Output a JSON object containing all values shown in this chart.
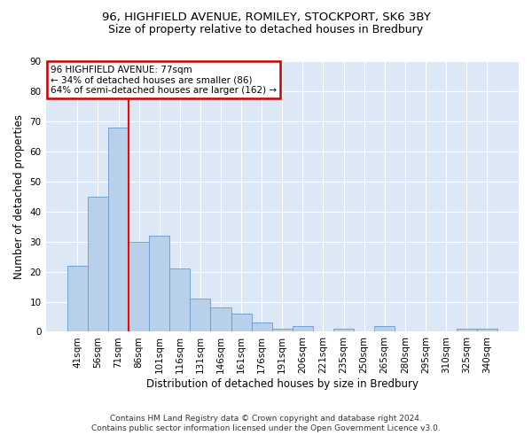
{
  "title1": "96, HIGHFIELD AVENUE, ROMILEY, STOCKPORT, SK6 3BY",
  "title2": "Size of property relative to detached houses in Bredbury",
  "xlabel": "Distribution of detached houses by size in Bredbury",
  "ylabel": "Number of detached properties",
  "footnote": "Contains HM Land Registry data © Crown copyright and database right 2024.\nContains public sector information licensed under the Open Government Licence v3.0.",
  "categories": [
    "41sqm",
    "56sqm",
    "71sqm",
    "86sqm",
    "101sqm",
    "116sqm",
    "131sqm",
    "146sqm",
    "161sqm",
    "176sqm",
    "191sqm",
    "206sqm",
    "221sqm",
    "235sqm",
    "250sqm",
    "265sqm",
    "280sqm",
    "295sqm",
    "310sqm",
    "325sqm",
    "340sqm"
  ],
  "values": [
    22,
    45,
    68,
    30,
    32,
    21,
    11,
    8,
    6,
    3,
    1,
    2,
    0,
    1,
    0,
    2,
    0,
    0,
    0,
    1,
    1
  ],
  "bar_color": "#b8d0ea",
  "bar_edge_color": "#6699cc",
  "red_line_index": 2,
  "annotation_text": "96 HIGHFIELD AVENUE: 77sqm\n← 34% of detached houses are smaller (86)\n64% of semi-detached houses are larger (162) →",
  "annotation_box_color": "#ffffff",
  "annotation_box_edge_color": "#cc0000",
  "ylim": [
    0,
    90
  ],
  "yticks": [
    0,
    10,
    20,
    30,
    40,
    50,
    60,
    70,
    80,
    90
  ],
  "bg_color": "#dce8f5",
  "fig_bg_color": "#ffffff",
  "grid_color": "#ffffff",
  "title1_fontsize": 9.5,
  "title2_fontsize": 9,
  "tick_fontsize": 7.5,
  "label_fontsize": 8.5,
  "footnote_fontsize": 6.5
}
